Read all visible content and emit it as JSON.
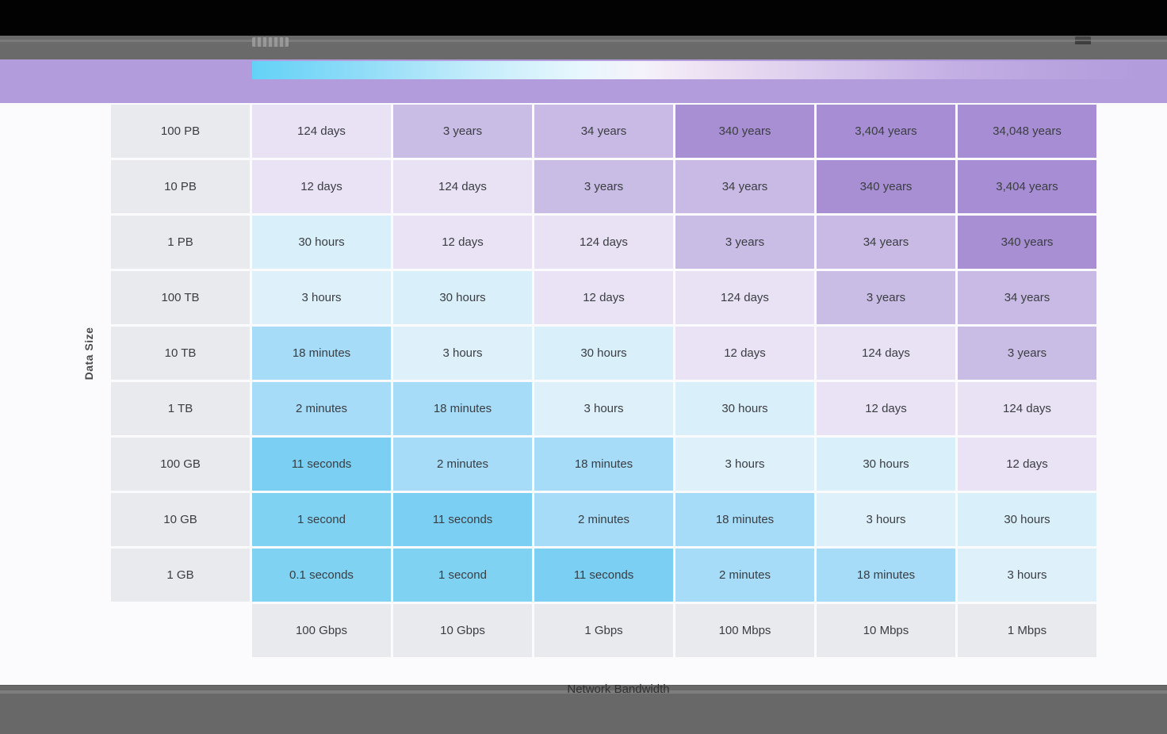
{
  "player": {
    "top_bar_color": "#6a6a6a",
    "letterbox_color": "#020202",
    "bottom_bar_color": "#686868"
  },
  "header": {
    "band_color": "#b29cdc"
  },
  "chart_data": {
    "type": "heatmap",
    "ylabel": "Data Size",
    "xlabel": "Network Bandwidth",
    "row_labels": [
      "100 PB",
      "10 PB",
      "1 PB",
      "100 TB",
      "10 TB",
      "1 TB",
      "100 GB",
      "10 GB",
      "1 GB"
    ],
    "col_labels": [
      "100 Gbps",
      "10 Gbps",
      "1 Gbps",
      "100 Mbps",
      "10 Mbps",
      "1 Mbps"
    ],
    "rows": [
      [
        "124 days",
        "3 years",
        "34 years",
        "340 years",
        "3,404 years",
        "34,048 years"
      ],
      [
        "12 days",
        "124 days",
        "3 years",
        "34 years",
        "340 years",
        "3,404 years"
      ],
      [
        "30 hours",
        "12 days",
        "124 days",
        "3 years",
        "34 years",
        "340 years"
      ],
      [
        "3 hours",
        "30 hours",
        "12 days",
        "124 days",
        "3 years",
        "34 years"
      ],
      [
        "18 minutes",
        "3 hours",
        "30 hours",
        "12 days",
        "124 days",
        "3 years"
      ],
      [
        "2 minutes",
        "18 minutes",
        "3 hours",
        "30 hours",
        "12 days",
        "124 days"
      ],
      [
        "11 seconds",
        "2 minutes",
        "18 minutes",
        "3 hours",
        "30 hours",
        "12 days"
      ],
      [
        "1 second",
        "11 seconds",
        "2 minutes",
        "18 minutes",
        "3 hours",
        "30 hours"
      ],
      [
        "0.1 seconds",
        "1 second",
        "11 seconds",
        "2 minutes",
        "18 minutes",
        "3 hours"
      ]
    ],
    "value_colors": {
      "0.1 seconds": "#80d2f3",
      "1 second": "#80d2f3",
      "11 seconds": "#7bcff2",
      "2 minutes": "#a6dcf7",
      "18 minutes": "#a6dcf7",
      "3 hours": "#def1fb",
      "30 hours": "#d9effa",
      "12 days": "#eae3f5",
      "124 days": "#e9e1f4",
      "3 years": "#c9bce5",
      "34 years": "#c8bae4",
      "340 years": "#a88fd4",
      "3,404 years": "#a78ed4",
      "34,048 years": "#a78ed4"
    },
    "label_cell_color": "#e8eaed",
    "legend": {
      "position": "top",
      "direction": "fast-blue to slow-purple",
      "stops": [
        {
          "color": "#63d2f7",
          "pos": 0
        },
        {
          "color": "#8fdcf8",
          "pos": 12
        },
        {
          "color": "#c3ecfb",
          "pos": 25
        },
        {
          "color": "#e8f7fd",
          "pos": 37
        },
        {
          "color": "#f5f2fa",
          "pos": 44
        },
        {
          "color": "#ecdff2",
          "pos": 52
        },
        {
          "color": "#d8c8ec",
          "pos": 65
        },
        {
          "color": "#c4afe4",
          "pos": 79
        },
        {
          "color": "#b8a2de",
          "pos": 92
        },
        {
          "color": "#b29cdc",
          "pos": 100
        }
      ]
    }
  }
}
